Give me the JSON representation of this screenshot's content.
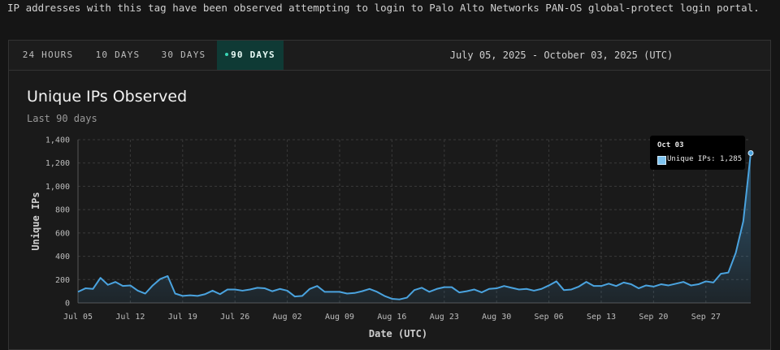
{
  "intro_text": "IP addresses with this tag have been observed attempting to login to Palo Alto Networks PAN-OS global-protect login portal.",
  "tabs": [
    {
      "label": "24 HOURS",
      "active": false
    },
    {
      "label": "10 DAYS",
      "active": false
    },
    {
      "label": "30 DAYS",
      "active": false
    },
    {
      "label": "90 DAYS",
      "active": true
    }
  ],
  "date_range": "July 05, 2025 - October 03, 2025 (UTC)",
  "colors": {
    "line": "#4aa3df",
    "accent": "#3ad6b5",
    "active_tab_bg": "#0f3a35"
  },
  "tooltip": {
    "date": "Oct 03",
    "label": "Unique IPs: 1,285"
  },
  "chart_data": {
    "type": "area",
    "title": "Unique IPs Observed",
    "subtitle": "Last 90 days",
    "xlabel": "Date (UTC)",
    "ylabel": "Unique IPs",
    "ylim": [
      0,
      1400
    ],
    "yticks": [
      "0",
      "200",
      "400",
      "600",
      "800",
      "1,000",
      "1,200",
      "1,400"
    ],
    "xticks": [
      "Jul 05",
      "Jul 12",
      "Jul 19",
      "Jul 26",
      "Aug 02",
      "Aug 09",
      "Aug 16",
      "Aug 23",
      "Aug 30",
      "Sep 06",
      "Sep 13",
      "Sep 20",
      "Sep 27"
    ],
    "grid": true,
    "legend": "none",
    "series": [
      {
        "name": "Unique IPs",
        "x_start": "2025-07-05",
        "x_end": "2025-10-03",
        "values": [
          95,
          125,
          120,
          215,
          155,
          180,
          145,
          150,
          105,
          80,
          150,
          205,
          230,
          80,
          60,
          65,
          60,
          75,
          105,
          75,
          115,
          115,
          105,
          115,
          130,
          125,
          100,
          120,
          105,
          55,
          60,
          120,
          145,
          95,
          95,
          95,
          80,
          85,
          100,
          120,
          95,
          60,
          35,
          30,
          45,
          110,
          130,
          95,
          120,
          135,
          135,
          90,
          100,
          115,
          90,
          120,
          125,
          145,
          130,
          115,
          120,
          105,
          120,
          150,
          185,
          110,
          115,
          140,
          180,
          145,
          145,
          165,
          145,
          175,
          160,
          125,
          150,
          140,
          160,
          150,
          165,
          180,
          150,
          160,
          185,
          175,
          250,
          260,
          430,
          700,
          1285
        ]
      }
    ]
  }
}
